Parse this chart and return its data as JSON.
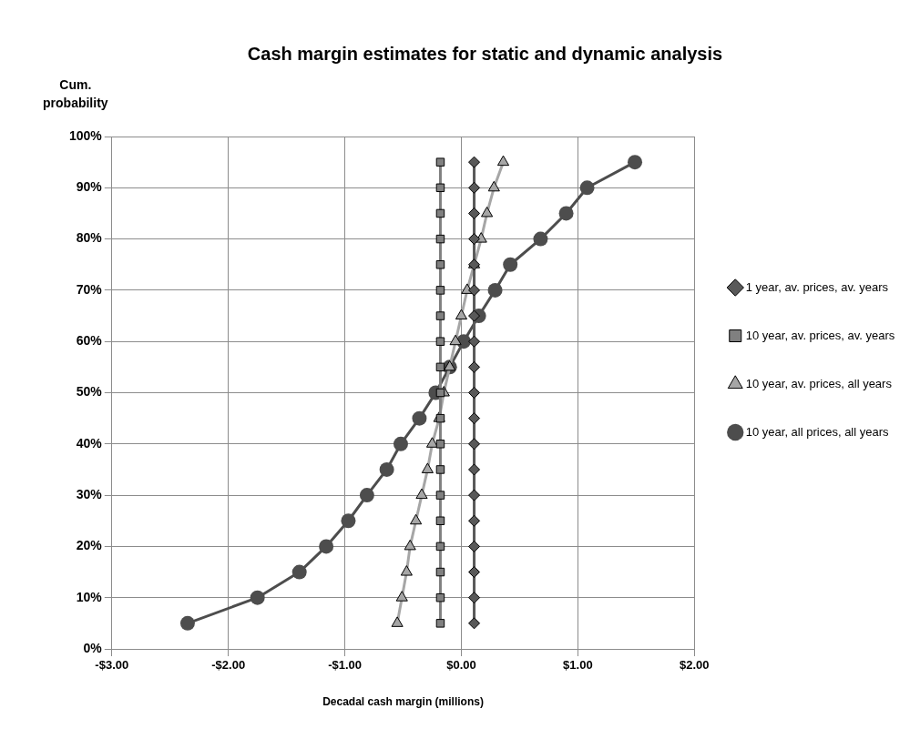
{
  "chart_data": {
    "type": "line",
    "title": "Cash margin estimates for static and dynamic analysis",
    "xlabel": "Decadal cash margin (millions)",
    "ylabel": "Cum. probability",
    "xlim": [
      -3,
      2
    ],
    "xticks": [
      {
        "value": -3,
        "label": "-$3.00"
      },
      {
        "value": -2,
        "label": "-$2.00"
      },
      {
        "value": -1,
        "label": "-$1.00"
      },
      {
        "value": 0,
        "label": "$0.00"
      },
      {
        "value": 1,
        "label": "$1.00"
      },
      {
        "value": 2,
        "label": "$2.00"
      }
    ],
    "ylim": [
      0,
      100
    ],
    "yticks": [
      {
        "value": 0,
        "label": "0%"
      },
      {
        "value": 10,
        "label": "10%"
      },
      {
        "value": 20,
        "label": "20%"
      },
      {
        "value": 30,
        "label": "30%"
      },
      {
        "value": 40,
        "label": "40%"
      },
      {
        "value": 50,
        "label": "50%"
      },
      {
        "value": 60,
        "label": "60%"
      },
      {
        "value": 70,
        "label": "70%"
      },
      {
        "value": 80,
        "label": "80%"
      },
      {
        "value": 90,
        "label": "90%"
      },
      {
        "value": 100,
        "label": "100%"
      }
    ],
    "grid": true,
    "legend": "right",
    "line_style": "solid",
    "series": [
      {
        "name": "1 year, av. prices, av. years",
        "color": "#595959",
        "marker": "diamond",
        "x": [
          0.11,
          0.11,
          0.11,
          0.11,
          0.11,
          0.11,
          0.11,
          0.11,
          0.11,
          0.11,
          0.11,
          0.11,
          0.11,
          0.11,
          0.11,
          0.11,
          0.11,
          0.11,
          0.11
        ],
        "values": [
          5,
          10,
          15,
          20,
          25,
          30,
          35,
          40,
          45,
          50,
          55,
          60,
          65,
          70,
          75,
          80,
          85,
          90,
          95
        ]
      },
      {
        "name": "10 year, av. prices, av. years",
        "color": "#808080",
        "marker": "square",
        "x": [
          -0.18,
          -0.18,
          -0.18,
          -0.18,
          -0.18,
          -0.18,
          -0.18,
          -0.18,
          -0.18,
          -0.18,
          -0.18,
          -0.18,
          -0.18,
          -0.18,
          -0.18,
          -0.18,
          -0.18,
          -0.18,
          -0.18
        ],
        "values": [
          5,
          10,
          15,
          20,
          25,
          30,
          35,
          40,
          45,
          50,
          55,
          60,
          65,
          70,
          75,
          80,
          85,
          90,
          95
        ]
      },
      {
        "name": "10 year, av. prices, all years",
        "color": "#a6a6a6",
        "marker": "triangle",
        "x": [
          -0.55,
          -0.51,
          -0.47,
          -0.44,
          -0.39,
          -0.34,
          -0.29,
          -0.25,
          -0.19,
          -0.15,
          -0.1,
          -0.05,
          0,
          0.05,
          0.11,
          0.17,
          0.22,
          0.28,
          0.36
        ],
        "values": [
          5,
          10,
          15,
          20,
          25,
          30,
          35,
          40,
          45,
          50,
          55,
          60,
          65,
          70,
          75,
          80,
          85,
          90,
          95
        ]
      },
      {
        "name": "10 year, all prices, all years",
        "color": "#4d4d4d",
        "marker": "circle",
        "x": [
          -2.35,
          -1.75,
          -1.39,
          -1.16,
          -0.97,
          -0.81,
          -0.64,
          -0.52,
          -0.36,
          -0.22,
          -0.1,
          0.02,
          0.15,
          0.29,
          0.42,
          0.68,
          0.9,
          1.08,
          1.49
        ],
        "values": [
          5,
          10,
          15,
          20,
          25,
          30,
          35,
          40,
          45,
          50,
          55,
          60,
          65,
          70,
          75,
          80,
          85,
          90,
          95
        ]
      }
    ]
  }
}
